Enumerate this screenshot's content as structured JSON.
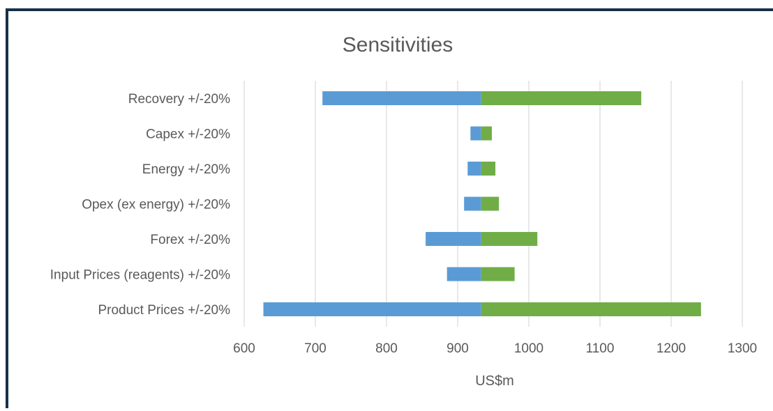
{
  "chart_data": {
    "type": "bar",
    "orientation": "horizontal",
    "title": "Sensitivities",
    "xlabel": "US$m",
    "ylabel": "",
    "xlim": [
      600,
      1300
    ],
    "xticks": [
      600,
      700,
      800,
      900,
      1000,
      1100,
      1200,
      1300
    ],
    "base": 933,
    "categories": [
      "Recovery +/-20%",
      "Capex +/-20%",
      "Energy +/-20%",
      "Opex (ex energy) +/-20%",
      "Forex +/-20%",
      "Input Prices (reagents) +/-20%",
      "Product Prices +/-20%"
    ],
    "series": [
      {
        "color": "#5b9bd5",
        "values": [
          710,
          918,
          914,
          909,
          855,
          885,
          627
        ]
      },
      {
        "color": "#70ad47",
        "values": [
          1158,
          948,
          953,
          958,
          1012,
          980,
          1242
        ]
      }
    ],
    "grid": true,
    "legend": "none"
  }
}
